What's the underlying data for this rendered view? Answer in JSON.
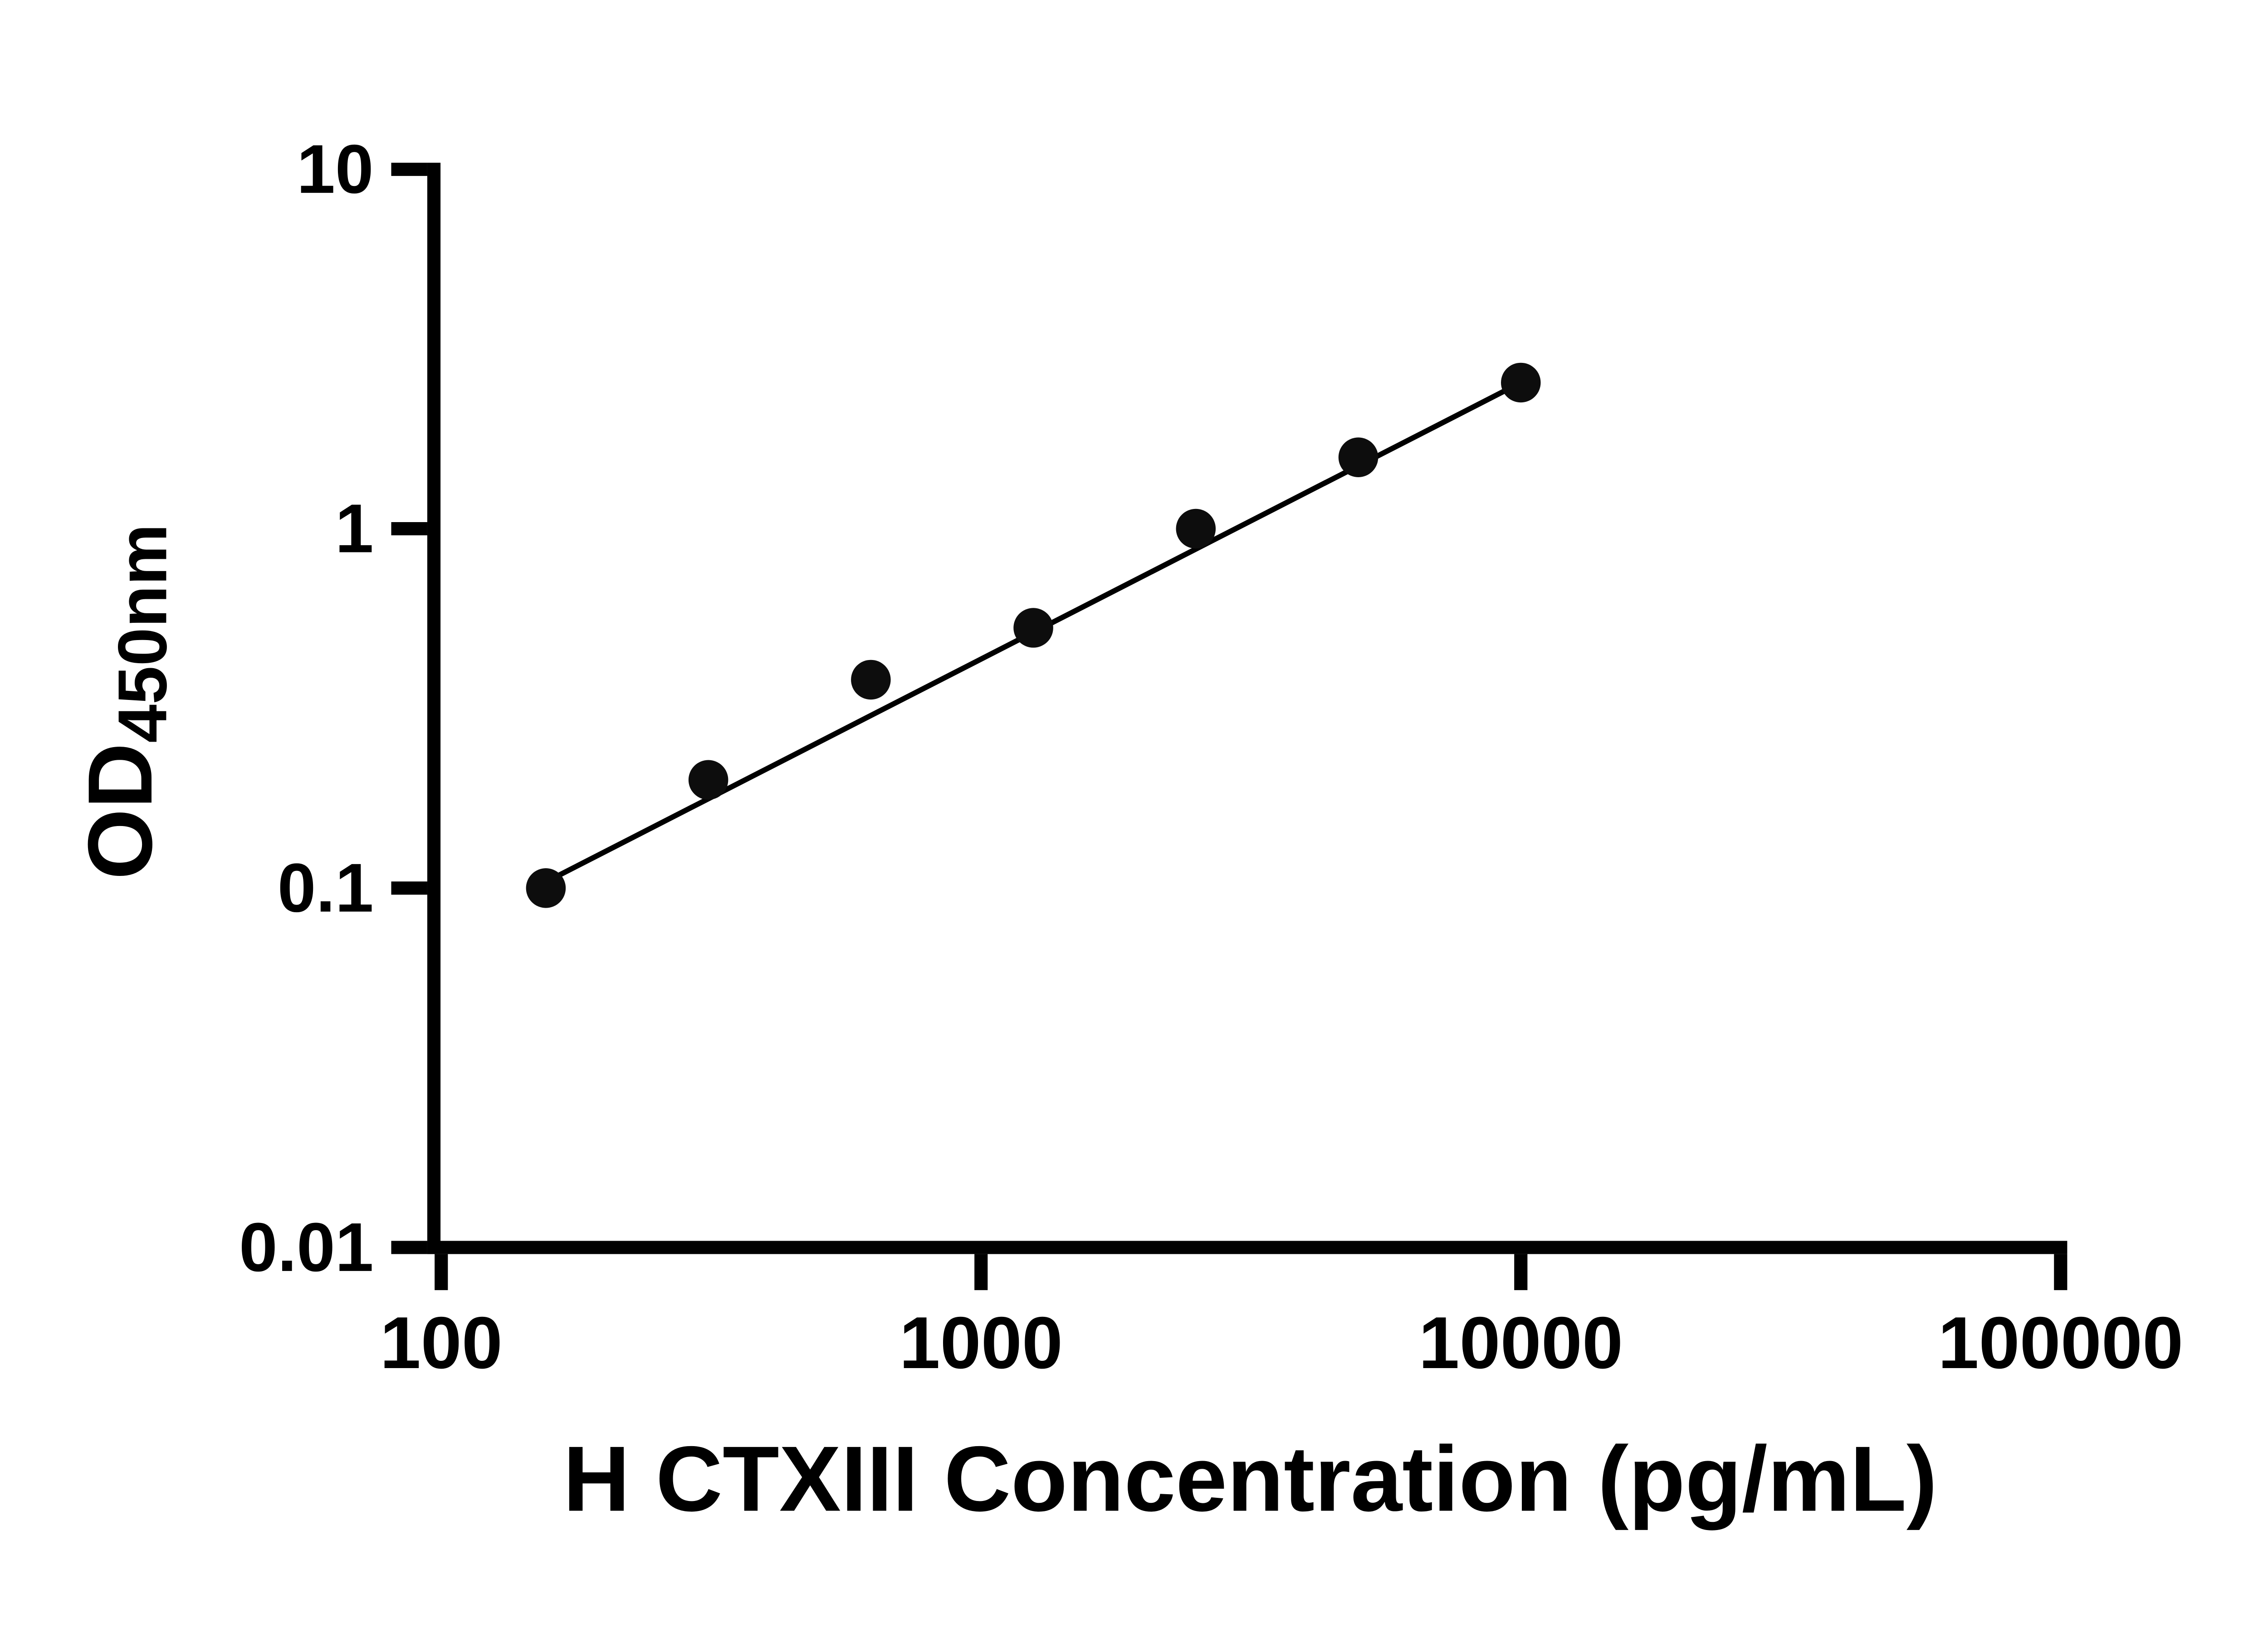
{
  "chart_data": {
    "type": "scatter",
    "title": "",
    "xlabel": "H CTXIII Concentration (pg/mL)",
    "ylabel_main": "OD",
    "ylabel_sub": "450nm",
    "x_scale": "log",
    "y_scale": "log",
    "xlim": [
      100,
      100000
    ],
    "ylim": [
      0.01,
      10
    ],
    "x_ticks": [
      100,
      1000,
      10000,
      100000
    ],
    "x_tick_labels": [
      "100",
      "1000",
      "10000",
      "100000"
    ],
    "y_ticks": [
      0.01,
      0.1,
      1,
      10
    ],
    "y_tick_labels": [
      "0.01",
      "0.1",
      "1",
      "10"
    ],
    "x": [
      156.25,
      312.5,
      625,
      1250,
      2500,
      5000,
      10000
    ],
    "y": [
      0.1,
      0.2,
      0.38,
      0.53,
      1.0,
      1.58,
      2.55
    ],
    "fit_line": {
      "x1": 156.25,
      "y1": 0.104,
      "x2": 10000,
      "y2": 2.55
    },
    "grid": false,
    "legend": null,
    "marker_color": "#0d0d0d",
    "line_color": "#000000",
    "axis_color": "#000000",
    "background_color": "#ffffff"
  }
}
